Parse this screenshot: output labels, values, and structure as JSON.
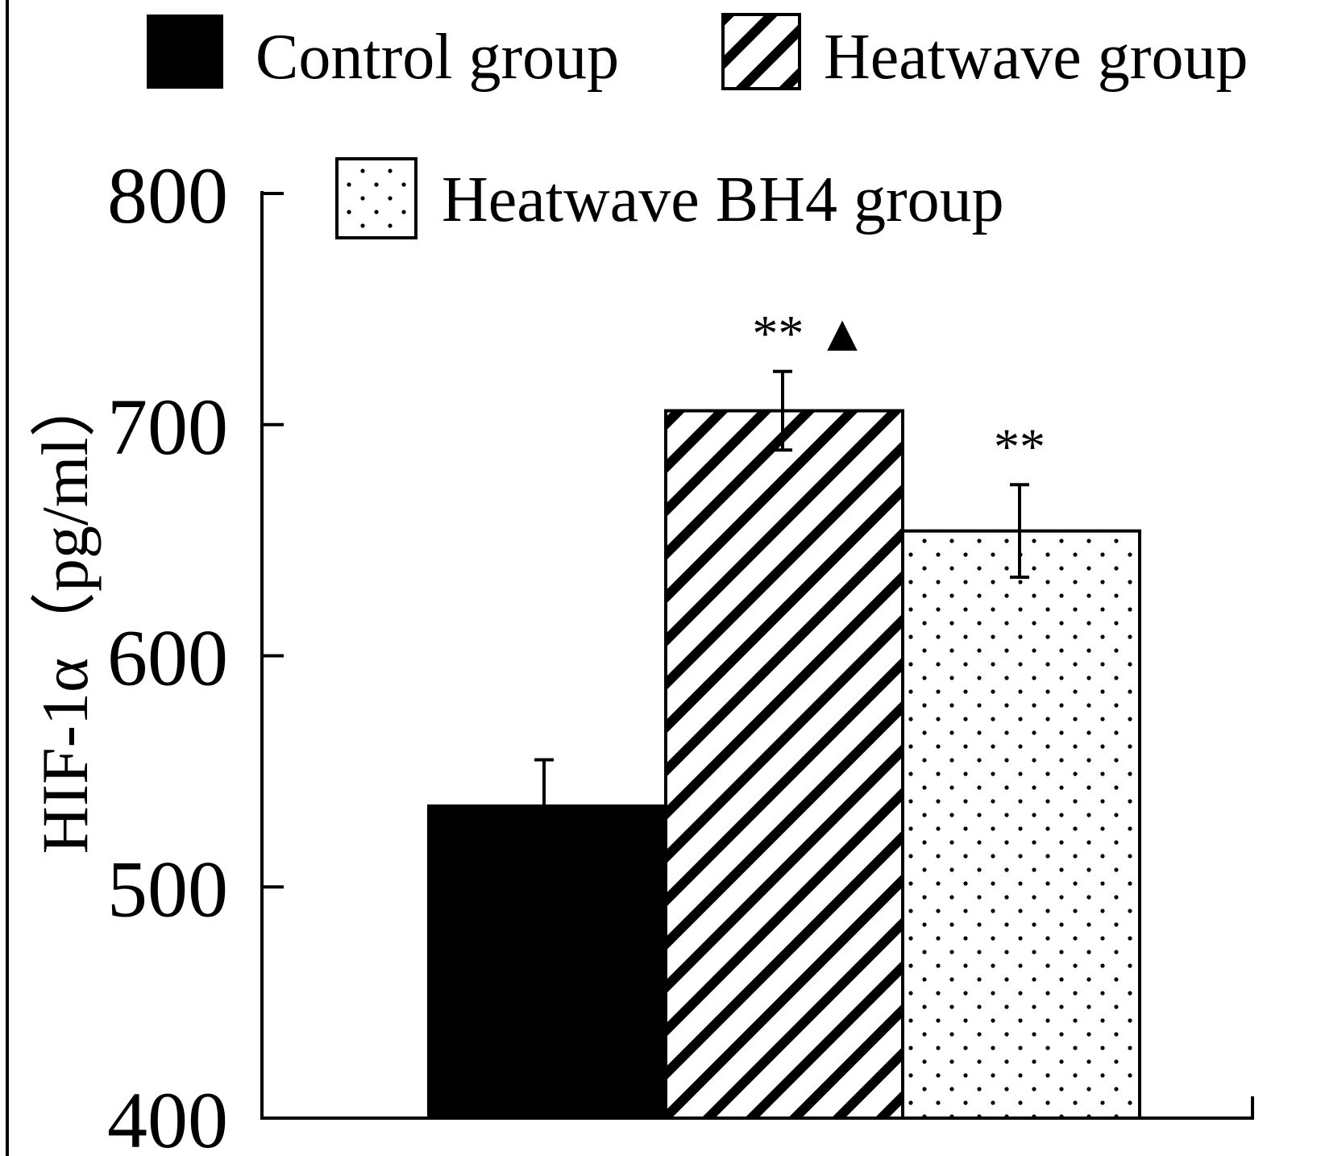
{
  "chart_data": {
    "type": "bar",
    "title": "",
    "xlabel": "",
    "ylabel": "HIF-1α（pg/ml）",
    "ylim": [
      400,
      800
    ],
    "yticks": [
      400,
      500,
      600,
      700,
      800
    ],
    "grid": false,
    "legend_position": "top",
    "categories": [
      "Control group",
      "Heatwave group",
      "Heatwave BH4 group"
    ],
    "values": [
      535,
      706,
      654
    ],
    "errors": [
      20,
      17,
      20
    ],
    "significance": [
      "",
      "** ▲",
      "**"
    ],
    "colors": {
      "control": "#000000",
      "heatwave": "#000000",
      "bh4": "#000000",
      "background": "#ffffff"
    },
    "patterns": [
      "solid",
      "diagonal-stripes",
      "dots"
    ]
  }
}
